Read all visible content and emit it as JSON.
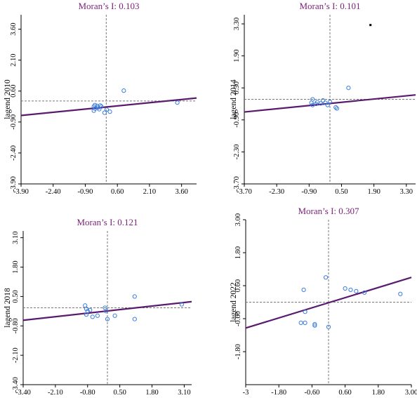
{
  "figure": {
    "background": "#ffffff"
  },
  "colors": {
    "title": "#7b1f7b",
    "regression": "#5a1a6e",
    "points": "#3a7de0",
    "guides": "#777777",
    "axes": "#000000"
  },
  "chart_data": [
    {
      "type": "scatter",
      "title": "Moran’s I: 0.103",
      "xlabel": "",
      "ylabel": "lagend 2010",
      "xlim": [
        -3.9,
        4.3
      ],
      "ylim": [
        -3.9,
        4.3
      ],
      "xticks": [
        "-3.90",
        "-2.40",
        "-0.90",
        "0.60",
        "2.10",
        "3.60"
      ],
      "yticks": [
        "-3.90",
        "-2.40",
        "-0.90",
        "0.60",
        "2.10",
        "3.60"
      ],
      "guides": {
        "x": 0.08,
        "y": 0.12
      },
      "regression": {
        "slope": 0.103,
        "intercept": -0.18
      },
      "marker": "none",
      "points": [
        {
          "x": -0.5,
          "y": -0.35
        },
        {
          "x": -0.45,
          "y": -0.25
        },
        {
          "x": -0.5,
          "y": -0.15
        },
        {
          "x": -0.45,
          "y": -0.08
        },
        {
          "x": -0.35,
          "y": -0.12
        },
        {
          "x": -0.3,
          "y": -0.2
        },
        {
          "x": -0.2,
          "y": -0.1
        },
        {
          "x": -0.15,
          "y": -0.15
        },
        {
          "x": 0.1,
          "y": -0.3
        },
        {
          "x": 0.25,
          "y": -0.4
        },
        {
          "x": -0.25,
          "y": -0.28
        },
        {
          "x": 0.0,
          "y": -0.45
        },
        {
          "x": 0.9,
          "y": 0.62
        },
        {
          "x": 3.4,
          "y": 0.04
        }
      ]
    },
    {
      "type": "scatter",
      "title": "Moran’s I: 0.101",
      "xlabel": "",
      "ylabel": "lagend 2014",
      "xlim": [
        -3.7,
        3.7
      ],
      "ylim": [
        -3.7,
        3.7
      ],
      "xticks": [
        "-3.70",
        "-2.30",
        "-0.90",
        "0.50",
        "1.90",
        "3.30"
      ],
      "yticks": [
        "-3.70",
        "-2.30",
        "-0.90",
        "0.50",
        "1.90",
        "3.30"
      ],
      "guides": {
        "x": 0.0,
        "y": 0.0
      },
      "regression": {
        "slope": 0.101,
        "intercept": -0.18
      },
      "marker": {
        "x": 1.75,
        "y": 3.25
      },
      "points": [
        {
          "x": -0.75,
          "y": 0.0
        },
        {
          "x": -0.8,
          "y": -0.15
        },
        {
          "x": -0.75,
          "y": -0.25
        },
        {
          "x": -0.6,
          "y": -0.2
        },
        {
          "x": -0.55,
          "y": -0.12
        },
        {
          "x": -0.4,
          "y": -0.18
        },
        {
          "x": -0.3,
          "y": -0.05
        },
        {
          "x": -0.2,
          "y": -0.15
        },
        {
          "x": -0.1,
          "y": -0.25
        },
        {
          "x": 0.0,
          "y": -0.1
        },
        {
          "x": 0.25,
          "y": -0.35
        },
        {
          "x": 0.3,
          "y": -0.4
        },
        {
          "x": 0.8,
          "y": 0.5
        }
      ]
    },
    {
      "type": "scatter",
      "title": "Moran’s I: 0.121",
      "xlabel": "",
      "ylabel": "lagend 2018",
      "xlim": [
        -3.4,
        3.4
      ],
      "ylim": [
        -3.4,
        3.4
      ],
      "xticks": [
        "-3.40",
        "-2.10",
        "-0.80",
        "0.50",
        "1.80",
        "3.10"
      ],
      "yticks": [
        "-3.40",
        "-2.10",
        "-0.80",
        "0.50",
        "1.80",
        "3.10"
      ],
      "guides": {
        "x": 0.0,
        "y": 0.0
      },
      "regression": {
        "slope": 0.121,
        "intercept": -0.14
      },
      "marker": "none",
      "points": [
        {
          "x": -0.9,
          "y": 0.1
        },
        {
          "x": -0.85,
          "y": -0.05
        },
        {
          "x": -0.8,
          "y": -0.15
        },
        {
          "x": -0.7,
          "y": -0.1
        },
        {
          "x": -0.85,
          "y": -0.3
        },
        {
          "x": -0.6,
          "y": -0.4
        },
        {
          "x": -0.4,
          "y": -0.35
        },
        {
          "x": -0.1,
          "y": 0.0
        },
        {
          "x": -0.05,
          "y": -0.15
        },
        {
          "x": 0.0,
          "y": -0.5
        },
        {
          "x": 0.3,
          "y": -0.35
        },
        {
          "x": 1.1,
          "y": 0.5
        },
        {
          "x": 1.1,
          "y": -0.5
        },
        {
          "x": 3.0,
          "y": 0.15
        }
      ]
    },
    {
      "type": "scatter",
      "title": "Moran’s I: 0.307",
      "xlabel": "",
      "ylabel": "lagend 2022",
      "xlim": [
        -3,
        3
      ],
      "ylim": [
        -3,
        3
      ],
      "xticks": [
        "-3",
        "-1.80",
        "-0.60",
        "0.60",
        "1.80",
        "3.00"
      ],
      "yticks": [
        "-1.80",
        "-0.60",
        "0.60",
        "1.80",
        "3.00"
      ],
      "guides": {
        "x": 0.0,
        "y": 0.0
      },
      "regression": {
        "slope": 0.307,
        "intercept": -0.02
      },
      "marker": "none",
      "points": [
        {
          "x": -0.9,
          "y": 0.45
        },
        {
          "x": -0.85,
          "y": -0.35
        },
        {
          "x": -1.0,
          "y": -0.75
        },
        {
          "x": -0.85,
          "y": -0.75
        },
        {
          "x": -0.5,
          "y": -0.8
        },
        {
          "x": -0.5,
          "y": -0.85
        },
        {
          "x": -0.1,
          "y": 0.9
        },
        {
          "x": 0.0,
          "y": -0.9
        },
        {
          "x": 0.6,
          "y": 0.5
        },
        {
          "x": 0.8,
          "y": 0.45
        },
        {
          "x": 1.0,
          "y": 0.4
        },
        {
          "x": 1.3,
          "y": 0.35
        },
        {
          "x": 2.6,
          "y": 0.3
        }
      ]
    }
  ]
}
